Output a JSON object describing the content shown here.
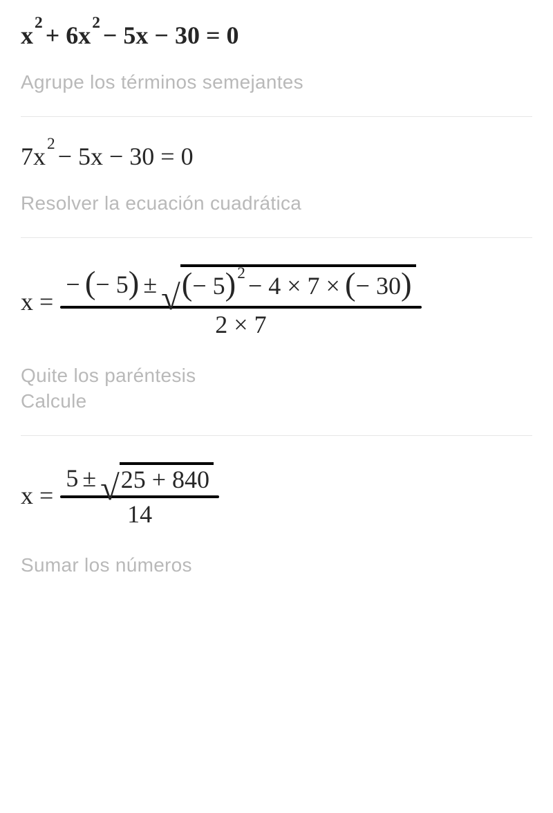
{
  "step1": {
    "equation_html": "x<span class='sup'>2</span> + 6x<span class='sup'>2</span> − 5x − 30 = 0",
    "is_bold": true,
    "instruction": "Agrupe los términos semejantes"
  },
  "step2": {
    "equation_html": "7x<span class='sup'>2</span> − 5x − 30 = 0",
    "is_bold": false,
    "instruction": "Resolver la ecuación cuadrática"
  },
  "step3": {
    "lhs": "x =",
    "numerator_pre": "−",
    "numerator_paren1": "− 5",
    "pm_symbol": "±",
    "radicand_paren": "− 5",
    "radicand_exp": "2",
    "radicand_rest": "− 4 × 7 ×",
    "radicand_paren2": "− 30",
    "denominator": "2 × 7",
    "instruction_lines": [
      "Quite los paréntesis",
      "Calcule"
    ]
  },
  "step4": {
    "lhs": "x =",
    "numerator_pre": "5",
    "pm_symbol": "±",
    "radicand": "25 + 840",
    "denominator": "14",
    "instruction": "Sumar los números"
  },
  "colors": {
    "text_main": "#262626",
    "text_muted": "#b9b9b9",
    "divider": "#e6e6e6",
    "background": "#ffffff"
  }
}
